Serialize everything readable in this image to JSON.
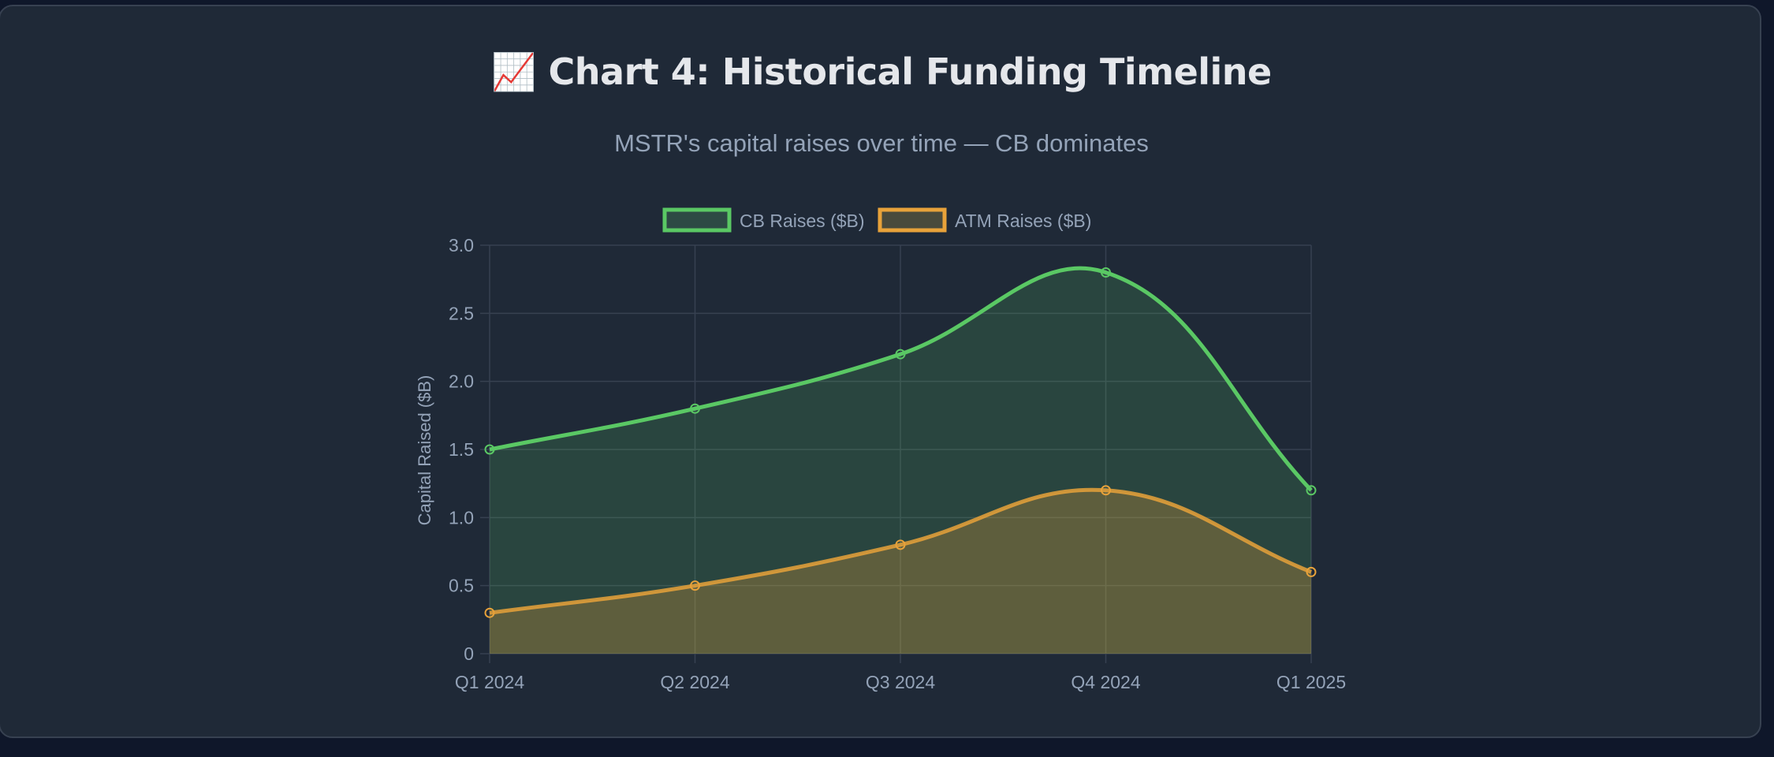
{
  "header": {
    "title": "📈 Chart 4: Historical Funding Timeline",
    "subtitle": "MSTR's capital raises over time — CB dominates"
  },
  "chart_data": {
    "type": "line",
    "title": "📈 Chart 4: Historical Funding Timeline",
    "subtitle": "MSTR's capital raises over time — CB dominates",
    "categories": [
      "Q1 2024",
      "Q2 2024",
      "Q3 2024",
      "Q4 2024",
      "Q1 2025"
    ],
    "series": [
      {
        "name": "CB Raises ($B)",
        "values": [
          1.5,
          1.8,
          2.2,
          2.8,
          1.2
        ],
        "color": "#5ac864",
        "fill": "#2d4a44",
        "filled": true
      },
      {
        "name": "ATM Raises ($B)",
        "values": [
          0.3,
          0.5,
          0.8,
          1.2,
          0.6
        ],
        "color": "#e8a23a",
        "fill": "#4a4a3c",
        "filled": true
      }
    ],
    "xlabel": "",
    "ylabel": "Capital Raised ($B)",
    "ylim": [
      0,
      3.0
    ],
    "yticks": [
      "0",
      "0.5",
      "1.0",
      "1.5",
      "2.0",
      "2.5",
      "3.0"
    ],
    "grid": true,
    "legend": "top",
    "smooth": true
  }
}
